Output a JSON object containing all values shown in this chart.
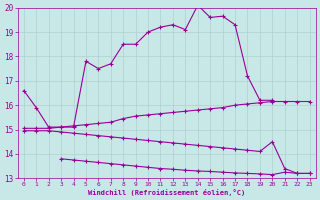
{
  "xlabel": "Windchill (Refroidissement éolien,°C)",
  "xlim": [
    -0.5,
    23.5
  ],
  "ylim": [
    13,
    20
  ],
  "xticks": [
    0,
    1,
    2,
    3,
    4,
    5,
    6,
    7,
    8,
    9,
    10,
    11,
    12,
    13,
    14,
    15,
    16,
    17,
    18,
    19,
    20,
    21,
    22,
    23
  ],
  "yticks": [
    13,
    14,
    15,
    16,
    17,
    18,
    19,
    20
  ],
  "background_color": "#c8e8e8",
  "grid_color": "#b0d0d0",
  "line_color": "#990099",
  "line1_x": [
    0,
    1,
    2,
    3,
    4,
    5,
    6,
    7,
    8,
    9,
    10,
    11,
    12,
    13,
    14,
    15,
    16,
    17,
    18,
    19,
    20
  ],
  "line1_y": [
    16.6,
    15.9,
    15.1,
    15.1,
    15.1,
    17.8,
    17.5,
    17.7,
    18.5,
    18.5,
    19.0,
    19.2,
    19.3,
    19.1,
    20.1,
    19.6,
    19.65,
    19.3,
    17.2,
    16.2,
    16.2
  ],
  "line2_x": [
    0,
    1,
    2,
    3,
    4,
    5,
    6,
    7,
    8,
    9,
    10,
    11,
    12,
    13,
    14,
    15,
    16,
    17,
    18,
    19,
    20,
    21,
    22,
    23
  ],
  "line2_y": [
    15.05,
    15.05,
    15.05,
    15.1,
    15.15,
    15.2,
    15.25,
    15.3,
    15.45,
    15.55,
    15.6,
    15.65,
    15.7,
    15.75,
    15.8,
    15.85,
    15.9,
    16.0,
    16.05,
    16.1,
    16.15,
    16.15,
    16.15,
    16.15
  ],
  "line3_x": [
    0,
    1,
    2,
    3,
    4,
    5,
    6,
    7,
    8,
    9,
    10,
    11,
    12,
    13,
    14,
    15,
    16,
    17,
    18,
    19,
    20,
    21,
    22,
    23
  ],
  "line3_y": [
    14.95,
    14.95,
    14.95,
    14.9,
    14.85,
    14.8,
    14.75,
    14.7,
    14.65,
    14.6,
    14.55,
    14.5,
    14.45,
    14.4,
    14.35,
    14.3,
    14.25,
    14.2,
    14.15,
    14.1,
    14.5,
    13.4,
    13.2,
    13.2
  ],
  "line4_x": [
    3,
    4,
    5,
    6,
    7,
    8,
    9,
    10,
    11,
    12,
    13,
    14,
    15,
    16,
    17,
    18,
    19,
    20,
    21,
    22,
    23
  ],
  "line4_y": [
    13.8,
    13.75,
    13.7,
    13.65,
    13.6,
    13.55,
    13.5,
    13.45,
    13.4,
    13.37,
    13.33,
    13.3,
    13.28,
    13.25,
    13.22,
    13.2,
    13.18,
    13.15,
    13.25,
    13.2,
    13.2
  ]
}
